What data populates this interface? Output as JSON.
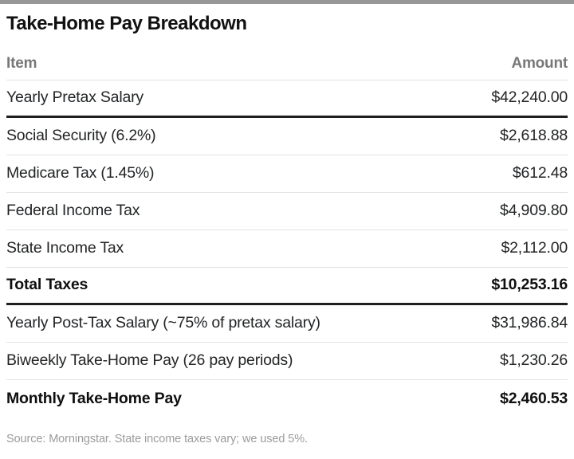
{
  "title": "Take-Home Pay Breakdown",
  "columns": {
    "item": "Item",
    "amount": "Amount"
  },
  "rows": [
    {
      "item": "Yearly Pretax Salary",
      "amount": "$42,240.00"
    },
    {
      "item": "Social Security (6.2%)",
      "amount": "$2,618.88"
    },
    {
      "item": "Medicare Tax (1.45%)",
      "amount": "$612.48"
    },
    {
      "item": "Federal Income Tax",
      "amount": "$4,909.80"
    },
    {
      "item": "State Income Tax",
      "amount": "$2,112.00"
    },
    {
      "item": "Total Taxes",
      "amount": "$10,253.16"
    },
    {
      "item": "Yearly Post-Tax Salary (~75% of pretax salary)",
      "amount": "$31,986.84"
    },
    {
      "item": "Biweekly Take-Home Pay (26 pay periods)",
      "amount": "$1,230.26"
    },
    {
      "item": "Monthly Take-Home Pay",
      "amount": "$2,460.53"
    }
  ],
  "footer": "Source: Morningstar. State income taxes vary; we used 5%.",
  "colors": {
    "top_rule": "#979797",
    "heavy_rule": "#1f1f1f",
    "light_rule": "#e2e2e2",
    "header_text": "#77787a",
    "footer_text": "#9b9b9b"
  },
  "chart_data": {
    "type": "table",
    "title": "Take-Home Pay Breakdown",
    "columns": [
      "Item",
      "Amount"
    ],
    "rows": [
      [
        "Yearly Pretax Salary",
        42240.0
      ],
      [
        "Social Security (6.2%)",
        2618.88
      ],
      [
        "Medicare Tax (1.45%)",
        612.48
      ],
      [
        "Federal Income Tax",
        4909.8
      ],
      [
        "State Income Tax",
        2112.0
      ],
      [
        "Total Taxes",
        10253.16
      ],
      [
        "Yearly Post-Tax Salary (~75% of pretax salary)",
        31986.84
      ],
      [
        "Biweekly Take-Home Pay (26 pay periods)",
        1230.26
      ],
      [
        "Monthly Take-Home Pay",
        2460.53
      ]
    ],
    "bold_rows": [
      "Total Taxes",
      "Monthly Take-Home Pay"
    ],
    "source_note": "Source: Morningstar. State income taxes vary; we used 5%."
  }
}
